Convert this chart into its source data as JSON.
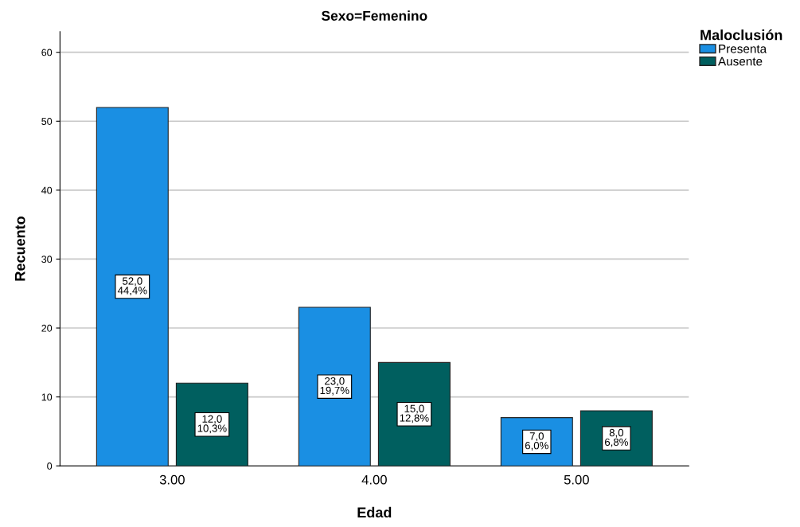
{
  "chart_data": {
    "type": "bar",
    "title": "Sexo=Femenino",
    "xlabel": "Edad",
    "ylabel": "Recuento",
    "legend_title": "Maloclusión",
    "categories": [
      "3.00",
      "4.00",
      "5.00"
    ],
    "series": [
      {
        "name": "Presenta",
        "color": "#1a8fe3",
        "values": [
          52,
          23,
          7
        ],
        "value_labels": [
          "52,0\n44,4%",
          "23,0\n19,7%",
          "7,0\n6,0%"
        ]
      },
      {
        "name": "Ausente",
        "color": "#005f5f",
        "values": [
          12,
          15,
          8
        ],
        "value_labels": [
          "12,0\n10,3%",
          "15,0\n12,8%",
          "8,0\n6,8%"
        ]
      }
    ],
    "ylim": [
      0,
      63
    ],
    "yticks": [
      0,
      10,
      20,
      30,
      40,
      50,
      60
    ],
    "grid": "y",
    "legend": "top right"
  }
}
